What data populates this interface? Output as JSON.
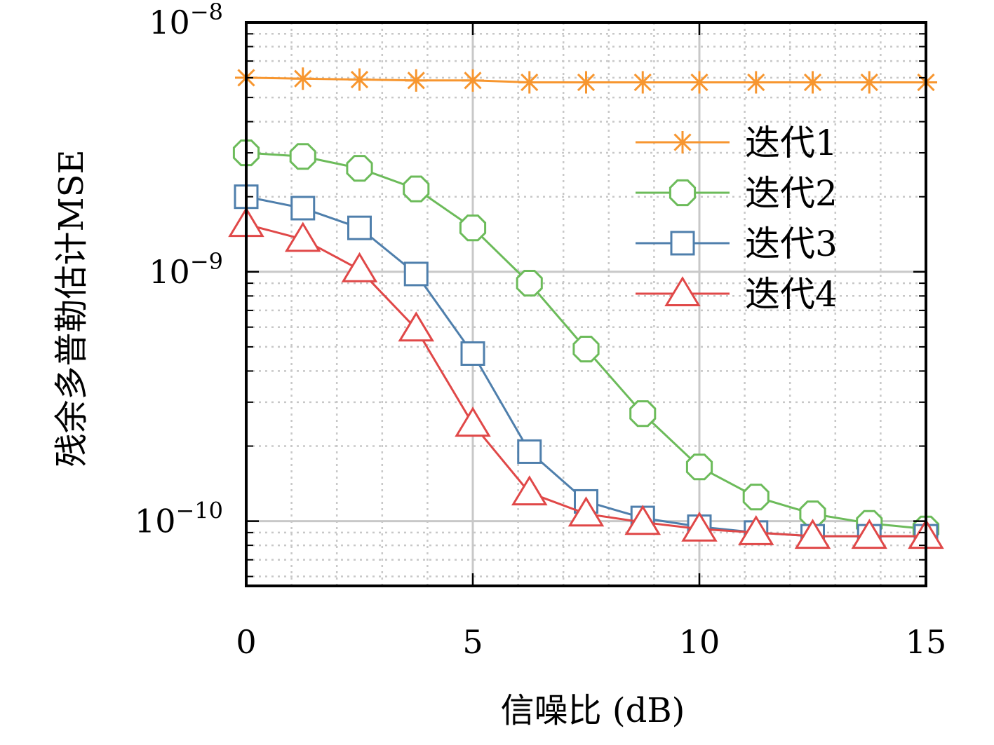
{
  "chart_data": {
    "type": "line",
    "title": "",
    "xlabel": "信噪比 (dB)",
    "ylabel": "残余多普勒估计MSE",
    "yscale": "log",
    "xlim": [
      0,
      15
    ],
    "ylim": [
      5.5e-11,
      1e-08
    ],
    "grid": true,
    "legend_position": "top-right",
    "x_ticks": [
      0,
      5,
      10,
      15
    ],
    "x_tick_labels": [
      "0",
      "5",
      "10",
      "15"
    ],
    "y_ticks": [
      1e-10,
      1e-09,
      1e-08
    ],
    "y_tick_labels": [
      {
        "base": "10",
        "exp": "−10"
      },
      {
        "base": "10",
        "exp": "−9"
      },
      {
        "base": "10",
        "exp": "−8"
      }
    ],
    "x": [
      0,
      1.25,
      2.5,
      3.75,
      5,
      6.25,
      7.5,
      8.75,
      10,
      11.25,
      12.5,
      13.75,
      15
    ],
    "series": [
      {
        "name": "迭代1",
        "color": "#f7962f",
        "marker": "star",
        "values": [
          6e-09,
          5.95e-09,
          5.9e-09,
          5.85e-09,
          5.85e-09,
          5.75e-09,
          5.75e-09,
          5.75e-09,
          5.75e-09,
          5.75e-09,
          5.75e-09,
          5.75e-09,
          5.75e-09
        ]
      },
      {
        "name": "迭代2",
        "color": "#6cbb5a",
        "marker": "circle",
        "values": [
          3e-09,
          2.9e-09,
          2.6e-09,
          2.15e-09,
          1.5e-09,
          9e-10,
          4.9e-10,
          2.7e-10,
          1.65e-10,
          1.25e-10,
          1.07e-10,
          9.8e-11,
          9.3e-11
        ]
      },
      {
        "name": "迭代3",
        "color": "#4f7fac",
        "marker": "square",
        "values": [
          2e-09,
          1.8e-09,
          1.5e-09,
          9.8e-10,
          4.7e-10,
          1.9e-10,
          1.2e-10,
          1.03e-10,
          9.5e-11,
          9e-11,
          8.7e-11,
          8.7e-11,
          8.7e-11
        ]
      },
      {
        "name": "迭代4",
        "color": "#e04848",
        "marker": "triangle",
        "values": [
          1.55e-09,
          1.35e-09,
          1.02e-09,
          5.9e-10,
          2.45e-10,
          1.3e-10,
          1.07e-10,
          9.9e-11,
          9.3e-11,
          9e-11,
          8.7e-11,
          8.7e-11,
          8.7e-11
        ]
      }
    ]
  }
}
